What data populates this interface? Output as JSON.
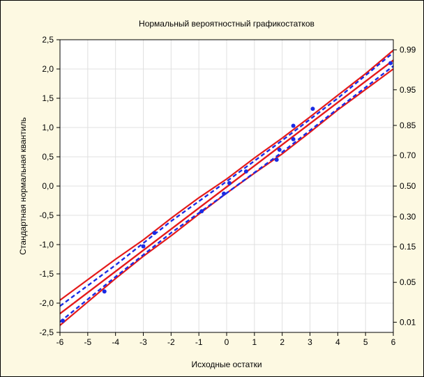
{
  "chart_data": {
    "type": "scatter",
    "title": "Нормальный вероятностный графикостатков",
    "xlabel": "Исходные остатки",
    "ylabel": "Стандартная нормальная квантиль",
    "xlim": [
      -6,
      6
    ],
    "ylim": [
      -2.5,
      2.5
    ],
    "x_ticks": [
      -6,
      -5,
      -4,
      -3,
      -2,
      -1,
      0,
      1,
      2,
      3,
      4,
      5,
      6
    ],
    "x_tick_labels": [
      "-6",
      "-5",
      "-4",
      "-3",
      "-2",
      "-1",
      "0",
      "1",
      "2",
      "3",
      "4",
      "5",
      "6"
    ],
    "y_ticks": [
      2.5,
      2.0,
      1.5,
      1.0,
      0.5,
      0.0,
      -0.5,
      -1.0,
      -1.5,
      -2.0,
      -2.5
    ],
    "y_tick_labels": [
      "2,5",
      "2,0",
      "1,5",
      "1,0",
      "0,5",
      "0,0",
      "-0,5",
      "-1,0",
      "-1,5",
      "-2,0",
      "-2,5"
    ],
    "y2_ticks": [
      {
        "z": 2.326,
        "label": "0.99"
      },
      {
        "z": 1.645,
        "label": "0.95"
      },
      {
        "z": 1.036,
        "label": "0.85"
      },
      {
        "z": 0.524,
        "label": "0.70"
      },
      {
        "z": 0.0,
        "label": "0.50"
      },
      {
        "z": -0.524,
        "label": "0.30"
      },
      {
        "z": -1.036,
        "label": "0.15"
      },
      {
        "z": -1.645,
        "label": "0.05"
      },
      {
        "z": -2.326,
        "label": "0.01"
      }
    ],
    "grid": true,
    "points": [
      {
        "x": -5.9,
        "y": -2.3
      },
      {
        "x": -4.4,
        "y": -1.8
      },
      {
        "x": -3.0,
        "y": -1.03
      },
      {
        "x": -2.6,
        "y": -0.8
      },
      {
        "x": -0.9,
        "y": -0.43
      },
      {
        "x": -0.1,
        "y": -0.13
      },
      {
        "x": 0.1,
        "y": 0.05
      },
      {
        "x": 0.7,
        "y": 0.25
      },
      {
        "x": 1.8,
        "y": 0.45
      },
      {
        "x": 1.9,
        "y": 0.62
      },
      {
        "x": 2.4,
        "y": 0.8
      },
      {
        "x": 2.4,
        "y": 1.03
      },
      {
        "x": 3.1,
        "y": 1.32
      },
      {
        "x": 5.9,
        "y": 2.1
      }
    ],
    "fit_line": [
      [
        -6,
        -2.18
      ],
      [
        6,
        2.15
      ]
    ],
    "band_outer_upper": [
      [
        -6,
        -1.95
      ],
      [
        -5,
        -1.6
      ],
      [
        -4,
        -1.25
      ],
      [
        -3,
        -0.92
      ],
      [
        -2,
        -0.55
      ],
      [
        -1,
        -0.2
      ],
      [
        0,
        0.12
      ],
      [
        1,
        0.48
      ],
      [
        2,
        0.82
      ],
      [
        3,
        1.18
      ],
      [
        4,
        1.55
      ],
      [
        5,
        1.92
      ],
      [
        6,
        2.32
      ]
    ],
    "band_outer_lower": [
      [
        -6,
        -2.38
      ],
      [
        -5,
        -1.98
      ],
      [
        -4,
        -1.58
      ],
      [
        -3,
        -1.2
      ],
      [
        -2,
        -0.85
      ],
      [
        -1,
        -0.48
      ],
      [
        0,
        -0.12
      ],
      [
        1,
        0.22
      ],
      [
        2,
        0.55
      ],
      [
        3,
        0.92
      ],
      [
        4,
        1.3
      ],
      [
        5,
        1.65
      ],
      [
        6,
        2.0
      ]
    ],
    "ci_dashed_upper": [
      [
        -6,
        -2.05
      ],
      [
        -4,
        -1.35
      ],
      [
        -2,
        -0.6
      ],
      [
        0,
        0.08
      ],
      [
        2,
        0.78
      ],
      [
        4,
        1.5
      ],
      [
        6,
        2.28
      ]
    ],
    "ci_dashed_lower": [
      [
        -6,
        -2.32
      ],
      [
        -4,
        -1.55
      ],
      [
        -2,
        -0.8
      ],
      [
        0,
        -0.12
      ],
      [
        2,
        0.58
      ],
      [
        4,
        1.32
      ],
      [
        6,
        2.05
      ]
    ],
    "colors": {
      "background": "#fdf9e2",
      "plot_area": "#ffffff",
      "grid": "#e0e0e0",
      "fit_line": "#e41a1a",
      "band": "#e41a1a",
      "ci_dashed": "#1a2be4",
      "points": "#1a2be4"
    }
  }
}
